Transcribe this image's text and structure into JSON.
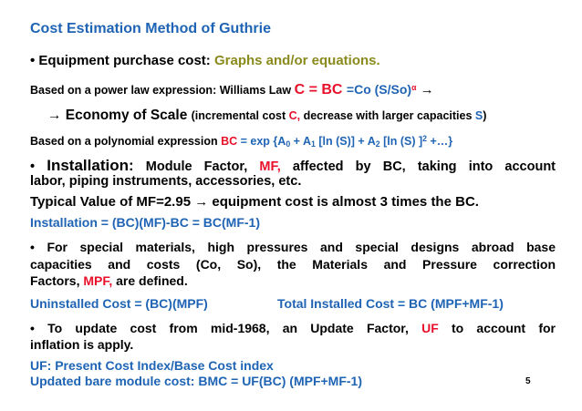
{
  "title": "Cost Estimation Method of Guthrie",
  "l1": {
    "bullet": "• ",
    "a": "Equipment purchase cost: ",
    "b": "Graphs and/or equations."
  },
  "l2": {
    "a": "Based on a power law expression: Williams Law ",
    "b": "C = BC ",
    "c": "=Co (S/So)",
    "alpha": "α",
    "arrow": "  →"
  },
  "l3": {
    "a": "→ Economy of Scale ",
    "b": "(incremental cost ",
    "c": "C,",
    "d": " decrease with larger capacities ",
    "e": "S",
    "f": ")"
  },
  "l4": {
    "a": "Based on a polynomial expression ",
    "b": "BC ",
    "c": "= exp {A",
    "sub0": "0",
    "d": " + A",
    "sub1": "1",
    "e": " [ln (S)] + A",
    "sub2": "2",
    "f": " [ln (S) ]",
    "sup2": "2",
    "g": " +…}"
  },
  "l5": {
    "bullet": "• ",
    "a": "Installation:",
    "b": " Module Factor, ",
    "c": "MF,",
    "d": " affected by BC, taking into account"
  },
  "l6": "labor, piping instruments, accessories, etc.",
  "l7": "Typical Value of MF=2.95 → equipment cost is almost 3 times the BC.",
  "l8": "Installation = (BC)(MF)-BC = BC(MF-1)",
  "l9": "• For special materials, high pressures and special designs abroad base",
  "l10": "capacities and costs (Co, So), the Materials and Pressure correction",
  "l11": {
    "a": "Factors, ",
    "b": "MPF,",
    "c": " are defined."
  },
  "l12": {
    "left": "Uninstalled Cost = (BC)(MPF)",
    "right": "Total Installed Cost = BC (MPF+MF-1)"
  },
  "l13": {
    "a": "• To update cost from mid-1968, an Update Factor, ",
    "b": "UF",
    "c": " to account for"
  },
  "l14": "inflation is apply.",
  "l15": "UF: Present Cost Index/Base Cost index",
  "l16": "Updated bare module cost: BMC = UF(BC) (MPF+MF-1)",
  "page_number": "5",
  "colors": {
    "heading": "#1f64b4",
    "highlight": "#e8102a",
    "olive": "#8a8a1e"
  }
}
